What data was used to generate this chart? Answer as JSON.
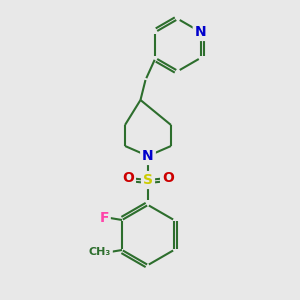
{
  "background_color": "#e8e8e8",
  "bond_color": "#2d6e2d",
  "bond_width": 1.5,
  "atom_colors": {
    "N": "#0000cc",
    "O": "#cc0000",
    "S": "#cccc00",
    "F": "#ff44aa",
    "C": "#2d6e2d",
    "CH3": "#2d6e2d"
  },
  "font_size_atoms": 10,
  "figsize": [
    3.0,
    3.0
  ],
  "dpi": 100
}
